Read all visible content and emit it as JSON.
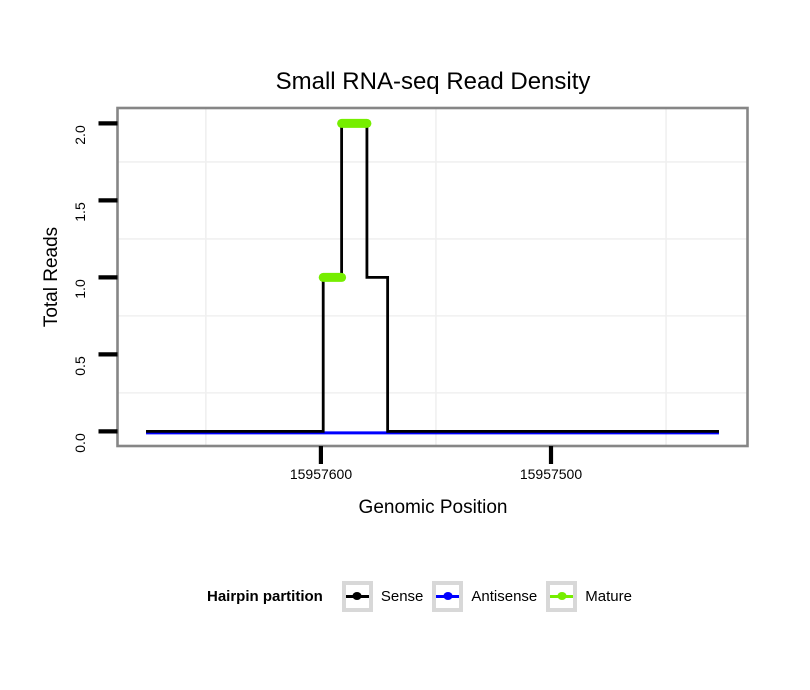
{
  "title": "Small RNA-seq Read Density",
  "axes": {
    "x": {
      "label": "Genomic Position",
      "tick_labels": [
        "15957600",
        "15957500"
      ]
    },
    "y": {
      "label": "Total Reads",
      "tick_labels": [
        "0.0",
        "0.5",
        "1.0",
        "1.5",
        "2.0"
      ]
    }
  },
  "legend": {
    "title": "Hairpin partition",
    "items": [
      {
        "label": "Sense",
        "color": "#000000"
      },
      {
        "label": "Antisense",
        "color": "#0000FF"
      },
      {
        "label": "Mature",
        "color": "#76EE00"
      }
    ]
  },
  "colors": {
    "sense": "#000000",
    "antisense": "#0000FF",
    "mature": "#76EE00",
    "panel_border": "#868686",
    "gridline_minor": "#F0F0F0",
    "tick": "#000000",
    "legend_key_border": "#D8D8D8",
    "background": "#FFFFFF"
  },
  "chart_data": {
    "type": "line",
    "title": "Small RNA-seq Read Density",
    "xlabel": "Genomic Position",
    "ylabel": "Total Reads",
    "x_axis": {
      "reversed": true,
      "domain": [
        15957688.4,
        15957414.6
      ],
      "ticks": [
        15957600,
        15957500
      ],
      "minor_gridlines": [
        15957650,
        15957550,
        15957450
      ]
    },
    "y_axis": {
      "domain": [
        -0.095,
        2.1
      ],
      "ticks": [
        0,
        0.5,
        1,
        1.5,
        2
      ],
      "minor_gridlines": [
        0.25,
        0.75,
        1.25,
        1.75
      ],
      "ylim": [
        0,
        2
      ]
    },
    "grid": "minor-only, very light gray on white panel",
    "legend_position": "bottom",
    "series": [
      {
        "name": "Sense",
        "color": "#000000",
        "style": "step-line",
        "points": [
          [
            15957676,
            0
          ],
          [
            15957599,
            0
          ],
          [
            15957599,
            1
          ],
          [
            15957591,
            1
          ],
          [
            15957591,
            2
          ],
          [
            15957580,
            2
          ],
          [
            15957580,
            1
          ],
          [
            15957571,
            1
          ],
          [
            15957571,
            0
          ],
          [
            15957427,
            0
          ]
        ]
      },
      {
        "name": "Antisense",
        "color": "#0000FF",
        "style": "flat-line",
        "points": [
          [
            15957676,
            0
          ],
          [
            15957427,
            0
          ]
        ]
      },
      {
        "name": "Mature",
        "color": "#76EE00",
        "style": "thick-rounded-segments",
        "segments": [
          {
            "y": 1,
            "from": 15957599,
            "to": 15957591
          },
          {
            "y": 2,
            "from": 15957591,
            "to": 15957580
          }
        ]
      }
    ]
  }
}
